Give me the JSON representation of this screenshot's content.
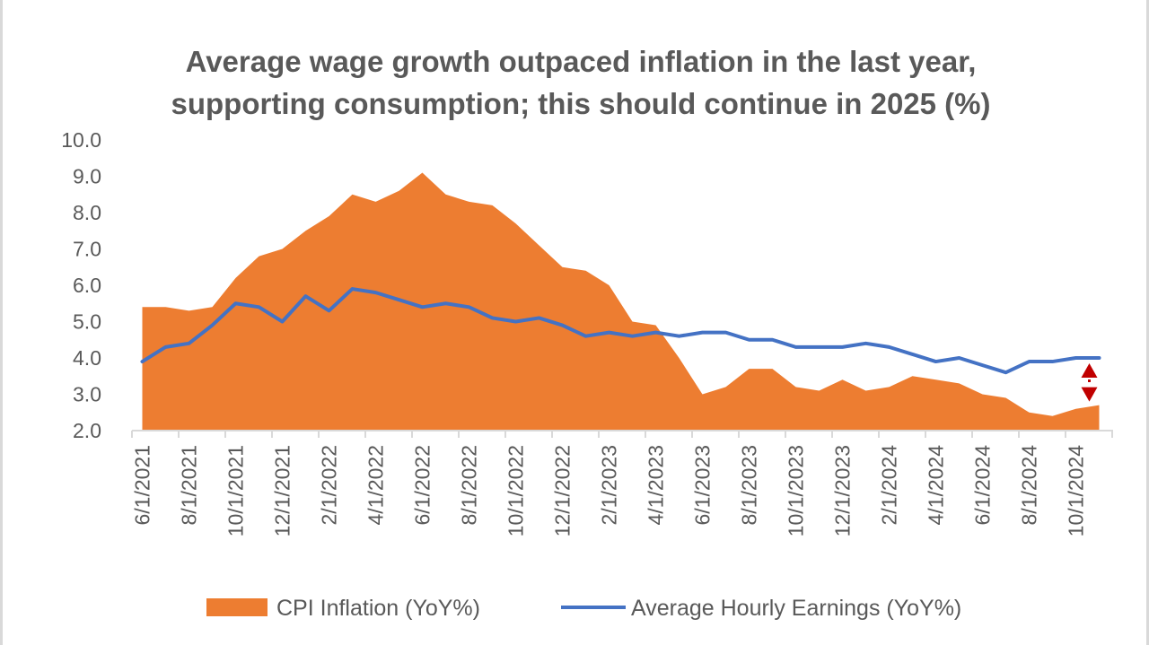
{
  "colors": {
    "cpi": "#ED7D31",
    "ahe": "#4472C4",
    "axis": "#D9D9D9",
    "text": "#595959",
    "marker": "#C00000"
  },
  "chart_data": {
    "type": "area",
    "title": [
      "Average wage growth outpaced inflation in the last year,",
      "supporting consumption; this should continue in 2025 (%)"
    ],
    "x": [
      "6/1/2021",
      "7/1/2021",
      "8/1/2021",
      "9/1/2021",
      "10/1/2021",
      "11/1/2021",
      "12/1/2021",
      "1/1/2022",
      "2/1/2022",
      "3/1/2022",
      "4/1/2022",
      "5/1/2022",
      "6/1/2022",
      "7/1/2022",
      "8/1/2022",
      "9/1/2022",
      "10/1/2022",
      "11/1/2022",
      "12/1/2022",
      "1/1/2023",
      "2/1/2023",
      "3/1/2023",
      "4/1/2023",
      "5/1/2023",
      "6/1/2023",
      "7/1/2023",
      "8/1/2023",
      "9/1/2023",
      "10/1/2023",
      "11/1/2023",
      "12/1/2023",
      "1/1/2024",
      "2/1/2024",
      "3/1/2024",
      "4/1/2024",
      "5/1/2024",
      "6/1/2024",
      "7/1/2024",
      "8/1/2024",
      "9/1/2024",
      "10/1/2024",
      "11/1/2024"
    ],
    "xtick_labels": [
      "6/1/2021",
      "8/1/2021",
      "10/1/2021",
      "12/1/2021",
      "2/1/2022",
      "4/1/2022",
      "6/1/2022",
      "8/1/2022",
      "10/1/2022",
      "12/1/2022",
      "2/1/2023",
      "4/1/2023",
      "6/1/2023",
      "8/1/2023",
      "10/1/2023",
      "12/1/2023",
      "2/1/2024",
      "4/1/2024",
      "6/1/2024",
      "8/1/2024",
      "10/1/2024"
    ],
    "ylim": [
      2.0,
      10.0
    ],
    "yticks": [
      "2.0",
      "3.0",
      "4.0",
      "5.0",
      "6.0",
      "7.0",
      "8.0",
      "9.0",
      "10.0"
    ],
    "series": [
      {
        "name": "CPI Inflation (YoY%)",
        "kind": "area",
        "values": [
          5.4,
          5.4,
          5.3,
          5.4,
          6.2,
          6.8,
          7.0,
          7.5,
          7.9,
          8.5,
          8.3,
          8.6,
          9.1,
          8.5,
          8.3,
          8.2,
          7.7,
          7.1,
          6.5,
          6.4,
          6.0,
          5.0,
          4.9,
          4.0,
          3.0,
          3.2,
          3.7,
          3.7,
          3.2,
          3.1,
          3.4,
          3.1,
          3.2,
          3.5,
          3.4,
          3.3,
          3.0,
          2.9,
          2.5,
          2.4,
          2.6,
          2.7
        ]
      },
      {
        "name": "Average Hourly Earnings (YoY%)",
        "kind": "line",
        "values": [
          3.9,
          4.3,
          4.4,
          4.9,
          5.5,
          5.4,
          5.0,
          5.7,
          5.3,
          5.9,
          5.8,
          5.6,
          5.4,
          5.5,
          5.4,
          5.1,
          5.0,
          5.1,
          4.9,
          4.6,
          4.7,
          4.6,
          4.7,
          4.6,
          4.7,
          4.7,
          4.5,
          4.5,
          4.3,
          4.3,
          4.3,
          4.4,
          4.3,
          4.1,
          3.9,
          4.0,
          3.8,
          3.6,
          3.9,
          3.9,
          4.0,
          4.0
        ]
      }
    ],
    "annotation": {
      "type": "double-arrow",
      "at_index": 41,
      "from": 4.0,
      "to": 2.7
    },
    "legend": "bottom",
    "grid": false
  }
}
